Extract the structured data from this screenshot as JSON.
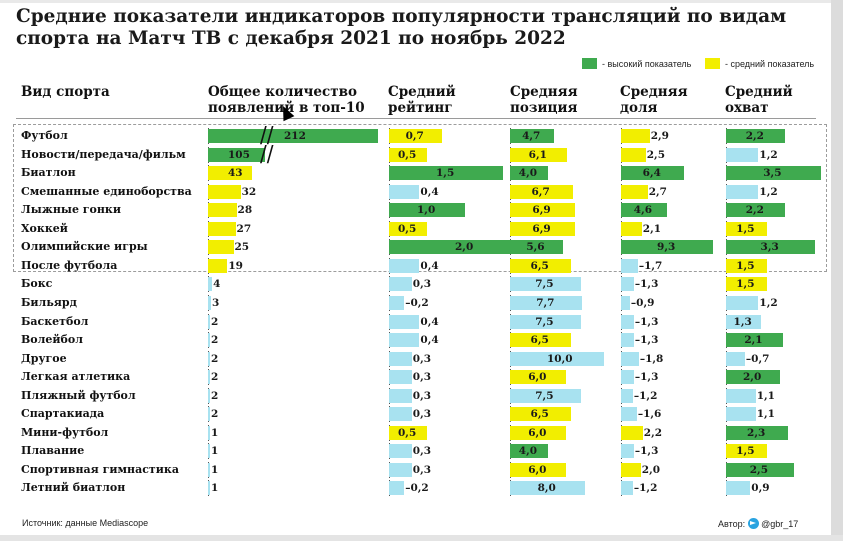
{
  "title": "Средние показатели индикаторов популярности трансляций по видам спорта на Матч ТВ с декабря 2021 по ноябрь 2022",
  "legend": {
    "high": "- высокий показатель",
    "medium": "- средний показатель"
  },
  "colors": {
    "high": "#3faa4f",
    "medium": "#f2ee00",
    "low": "#a8e2f0"
  },
  "footer": {
    "source": "Источник: данные Mediascope",
    "author": "Автор:",
    "author_handle": "@gbr_17"
  },
  "chart_data": {
    "type": "table",
    "columns": [
      {
        "key": "appearances",
        "label": "Общее количество появлений в топ-10"
      },
      {
        "key": "rating",
        "label": "Средний рейтинг"
      },
      {
        "key": "position",
        "label": "Средняя позиция"
      },
      {
        "key": "share",
        "label": "Средняя доля"
      },
      {
        "key": "reach",
        "label": "Средний охват"
      }
    ],
    "row_header": "Вид спорта",
    "rows": [
      {
        "sport": "Футбол",
        "values": [
          "212",
          "0,7",
          "4,7",
          "2,9",
          "2,2"
        ],
        "levels": [
          "high",
          "medium",
          "high",
          "medium",
          "high"
        ]
      },
      {
        "sport": "Новости/передача/фильм",
        "values": [
          "105",
          "0,5",
          "6,1",
          "2,5",
          "1,2"
        ],
        "levels": [
          "high",
          "medium",
          "medium",
          "medium",
          "low"
        ]
      },
      {
        "sport": "Биатлон",
        "values": [
          "43",
          "1,5",
          "4,0",
          "6,4",
          "3,5"
        ],
        "levels": [
          "medium",
          "high",
          "high",
          "high",
          "high"
        ]
      },
      {
        "sport": "Смешанные единоборства",
        "values": [
          "32",
          "0,4",
          "6,7",
          "2,7",
          "1,2"
        ],
        "levels": [
          "medium",
          "low",
          "medium",
          "medium",
          "low"
        ]
      },
      {
        "sport": "Лыжные гонки",
        "values": [
          "28",
          "1,0",
          "6,9",
          "4,6",
          "2,2"
        ],
        "levels": [
          "medium",
          "high",
          "medium",
          "high",
          "high"
        ]
      },
      {
        "sport": "Хоккей",
        "values": [
          "27",
          "0,5",
          "6,9",
          "2,1",
          "1,5"
        ],
        "levels": [
          "medium",
          "medium",
          "medium",
          "medium",
          "medium"
        ]
      },
      {
        "sport": "Олимпийские игры",
        "values": [
          "25",
          "2,0",
          "5,6",
          "9,3",
          "3,3"
        ],
        "levels": [
          "medium",
          "high",
          "high",
          "high",
          "high"
        ]
      },
      {
        "sport": "После футбола",
        "values": [
          "19",
          "0,4",
          "6,5",
          "1,7",
          "1,5"
        ],
        "levels": [
          "medium",
          "low",
          "medium",
          "low",
          "medium"
        ]
      },
      {
        "sport": "Бокс",
        "values": [
          "4",
          "0,3",
          "7,5",
          "1,3",
          "1,5"
        ],
        "levels": [
          "low",
          "low",
          "low",
          "low",
          "medium"
        ]
      },
      {
        "sport": "Бильярд",
        "values": [
          "3",
          "0,2",
          "7,7",
          "0,9",
          "1,2"
        ],
        "levels": [
          "low",
          "low",
          "low",
          "low",
          "low"
        ]
      },
      {
        "sport": "Баскетбол",
        "values": [
          "2",
          "0,4",
          "7,5",
          "1,3",
          "1,3"
        ],
        "levels": [
          "low",
          "low",
          "low",
          "low",
          "low"
        ]
      },
      {
        "sport": "Волейбол",
        "values": [
          "2",
          "0,4",
          "6,5",
          "1,3",
          "2,1"
        ],
        "levels": [
          "low",
          "low",
          "medium",
          "low",
          "high"
        ]
      },
      {
        "sport": "Другое",
        "values": [
          "2",
          "0,3",
          "10,0",
          "1,8",
          "0,7"
        ],
        "levels": [
          "low",
          "low",
          "low",
          "low",
          "low"
        ]
      },
      {
        "sport": "Легкая атлетика",
        "values": [
          "2",
          "0,3",
          "6,0",
          "1,3",
          "2,0"
        ],
        "levels": [
          "low",
          "low",
          "medium",
          "low",
          "high"
        ]
      },
      {
        "sport": "Пляжный футбол",
        "values": [
          "2",
          "0,3",
          "7,5",
          "1,2",
          "1,1"
        ],
        "levels": [
          "low",
          "low",
          "low",
          "low",
          "low"
        ]
      },
      {
        "sport": "Спартакиада",
        "values": [
          "2",
          "0,3",
          "6,5",
          "1,6",
          "1,1"
        ],
        "levels": [
          "low",
          "low",
          "medium",
          "low",
          "low"
        ]
      },
      {
        "sport": "Мини-футбол",
        "values": [
          "1",
          "0,5",
          "6,0",
          "2,2",
          "2,3"
        ],
        "levels": [
          "low",
          "medium",
          "medium",
          "medium",
          "high"
        ]
      },
      {
        "sport": "Плавание",
        "values": [
          "1",
          "0,3",
          "4,0",
          "1,3",
          "1,5"
        ],
        "levels": [
          "low",
          "low",
          "high",
          "low",
          "medium"
        ]
      },
      {
        "sport": "Спортивная гимнастика",
        "values": [
          "1",
          "0,3",
          "6,0",
          "2,0",
          "2,5"
        ],
        "levels": [
          "low",
          "low",
          "medium",
          "medium",
          "high"
        ]
      },
      {
        "sport": "Летний биатлон",
        "values": [
          "1",
          "0,2",
          "8,0",
          "1,2",
          "0,9"
        ],
        "levels": [
          "low",
          "low",
          "low",
          "low",
          "low"
        ]
      }
    ]
  }
}
